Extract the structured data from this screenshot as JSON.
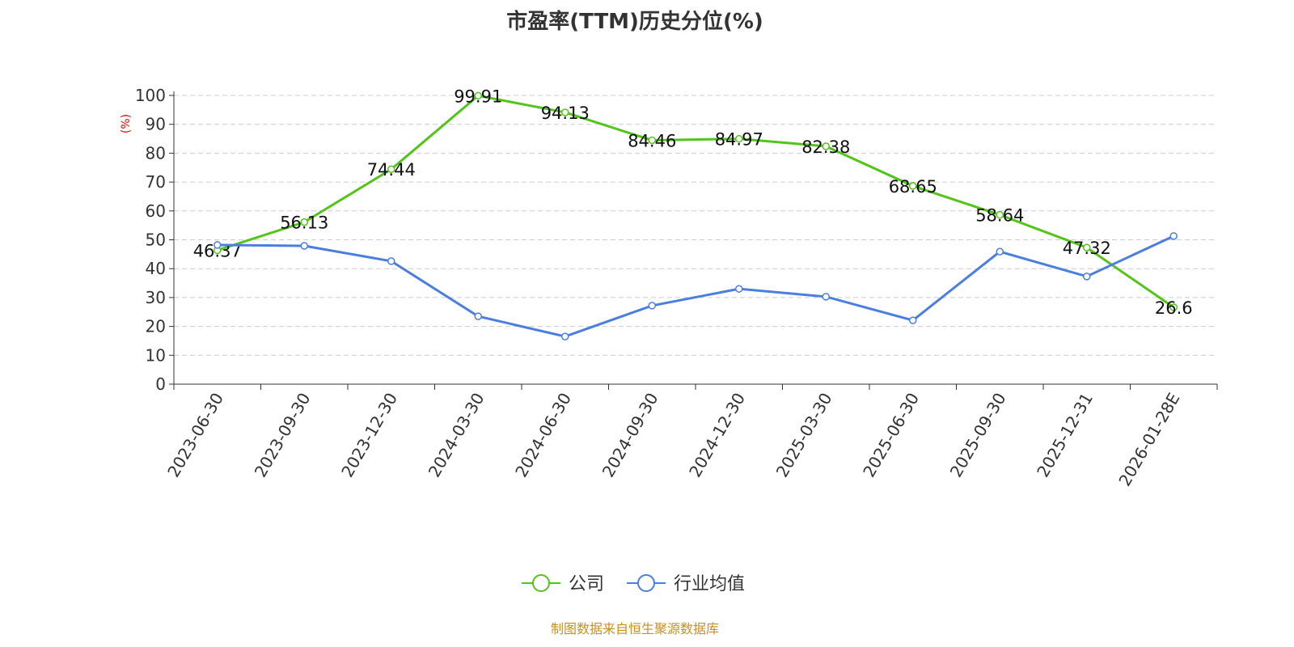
{
  "chart_data": {
    "type": "line",
    "title": "市盈率(TTM)历史分位(%)",
    "ylabel": "(%)",
    "ylim": [
      0,
      100
    ],
    "yticks": [
      0,
      10,
      20,
      30,
      40,
      50,
      60,
      70,
      80,
      90,
      100
    ],
    "grid": true,
    "legend_position": "bottom",
    "categories": [
      "2023-06-30",
      "2023-09-30",
      "2023-12-30",
      "2024-03-30",
      "2024-06-30",
      "2024-09-30",
      "2024-12-30",
      "2025-03-30",
      "2025-06-30",
      "2025-09-30",
      "2025-12-31",
      "2026-01-28E"
    ],
    "series": [
      {
        "name": "公司",
        "color": "#52c41a",
        "values": [
          46.37,
          56.13,
          74.44,
          99.91,
          94.13,
          84.46,
          84.97,
          82.38,
          68.65,
          58.64,
          47.32,
          26.6
        ],
        "labels": [
          "46.37",
          "56.13",
          "74.44",
          "99.91",
          "94.13",
          "84.46",
          "84.97",
          "82.38",
          "68.65",
          "58.64",
          "47.32",
          "26.6"
        ]
      },
      {
        "name": "行业均值",
        "color": "#4a7fe0",
        "values": [
          48.2,
          47.9,
          42.6,
          23.5,
          16.5,
          27.2,
          33.0,
          30.3,
          22.1,
          45.9,
          37.3,
          51.3
        ]
      }
    ]
  },
  "source": "制图数据来自恒生聚源数据库"
}
